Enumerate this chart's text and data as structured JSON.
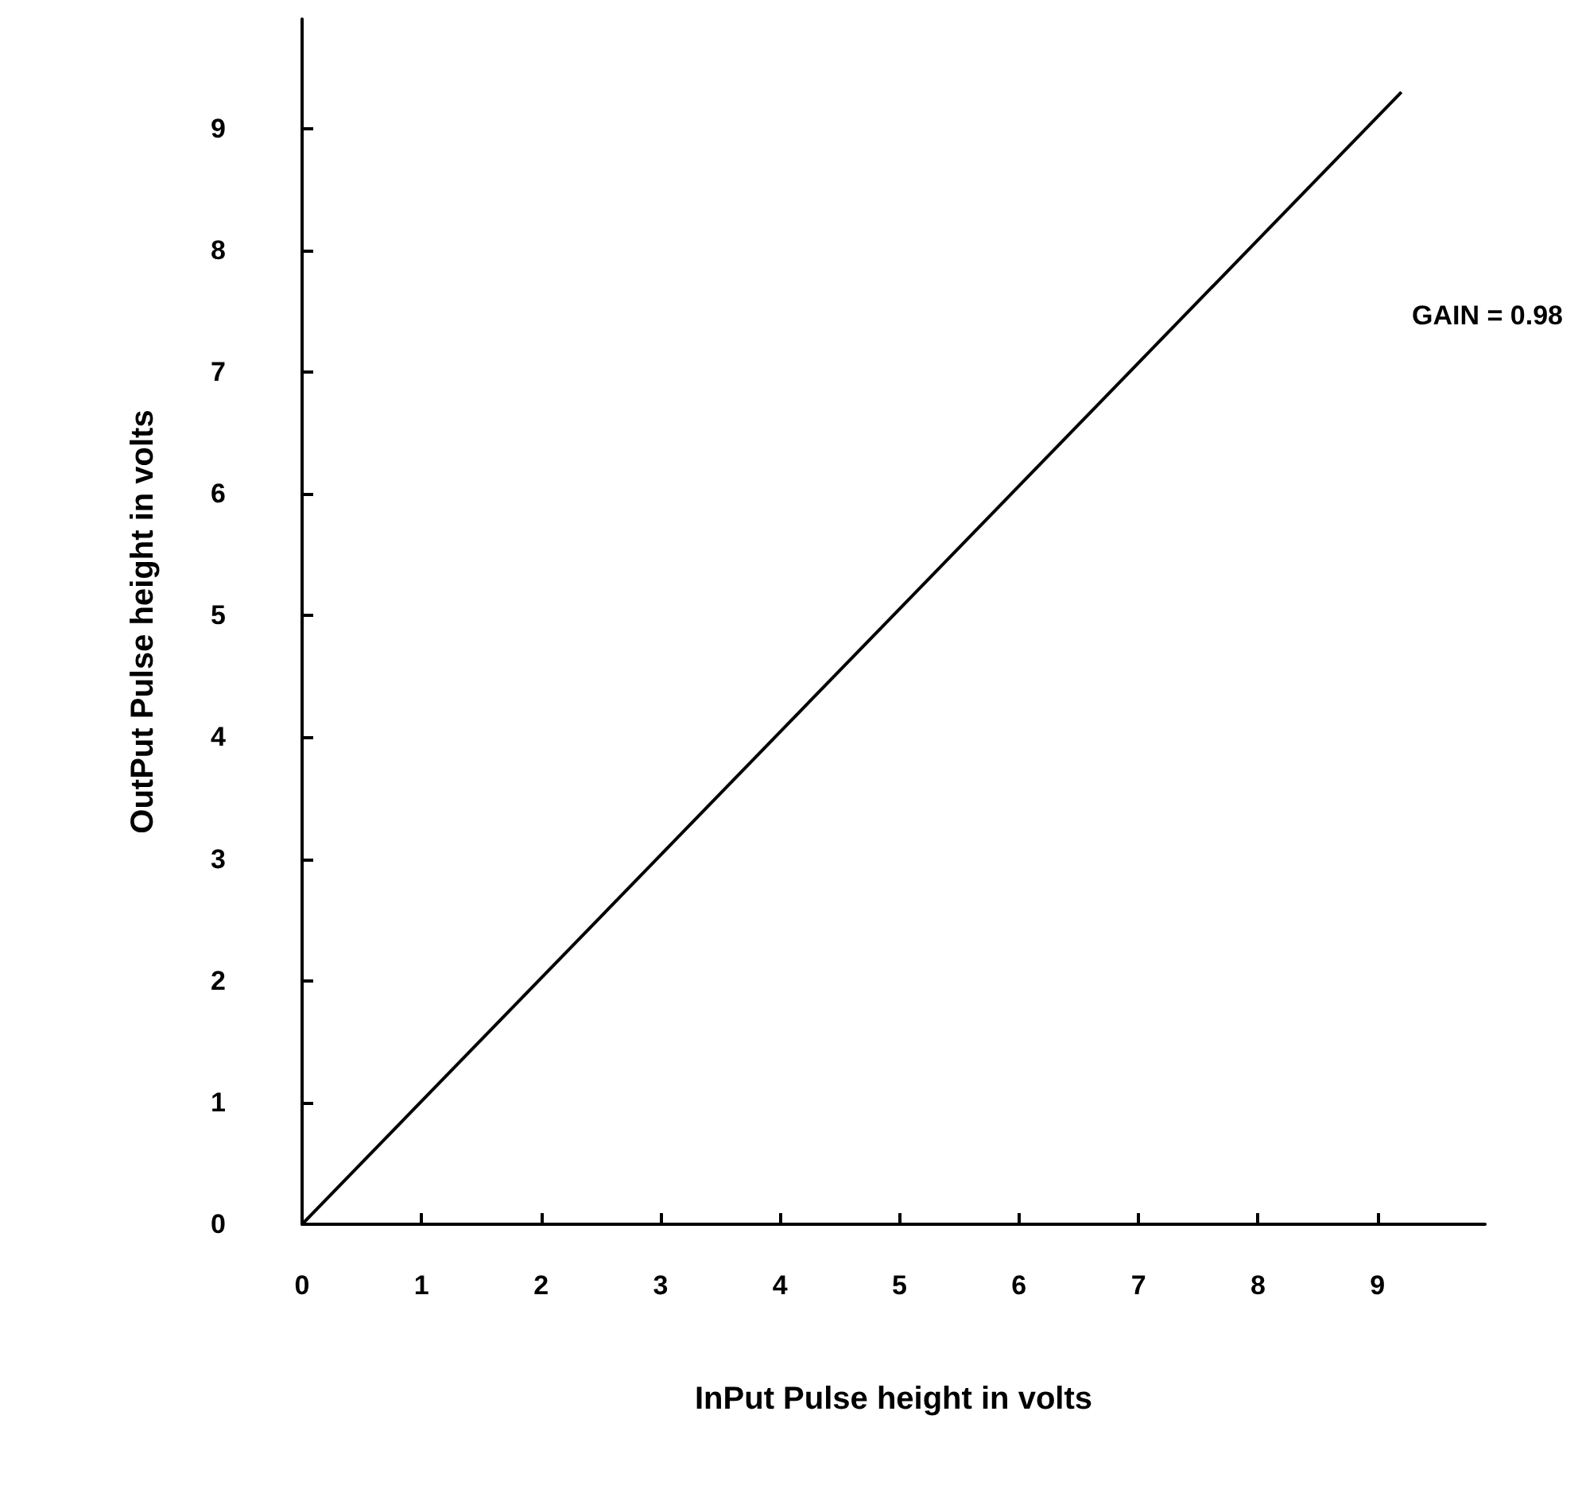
{
  "chart_data": {
    "type": "line",
    "xlabel": "InPut Pulse height in volts",
    "ylabel": "OutPut Pulse height in volts",
    "annotations": [
      "GAIN = 0.98"
    ],
    "series": [
      {
        "x": [
          0,
          9.2
        ],
        "values": [
          0,
          9.3
        ],
        "color": "#000000"
      }
    ],
    "xlim": [
      0,
      9.9
    ],
    "ylim": [
      0,
      9.9
    ],
    "xticks": [
      0,
      1,
      2,
      3,
      4,
      5,
      6,
      7,
      8,
      9
    ],
    "yticks": [
      0,
      1,
      2,
      3,
      4,
      5,
      6,
      7,
      8,
      9
    ],
    "grid": false,
    "marker": "none",
    "line_style": "solid"
  }
}
